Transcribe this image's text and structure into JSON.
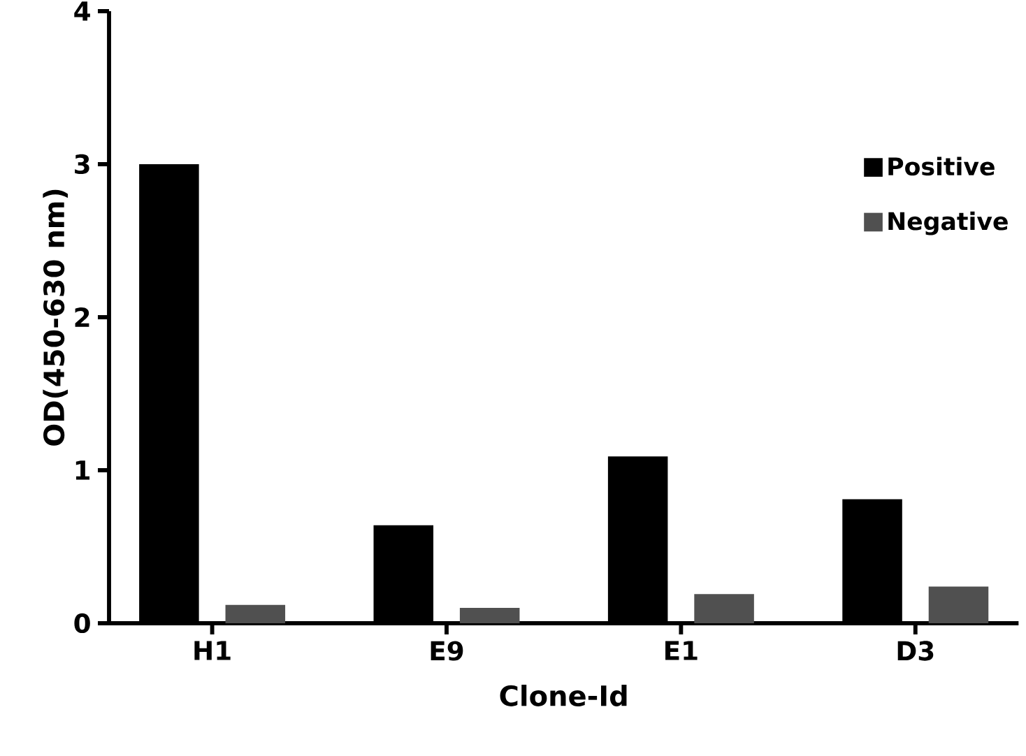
{
  "chart_data": {
    "type": "bar",
    "xlabel": "Clone-Id",
    "ylabel": "OD(450-630 nm)",
    "categories": [
      "H1",
      "E9",
      "E1",
      "D3"
    ],
    "series": [
      {
        "name": "Positive",
        "color": "#000000",
        "values": [
          3.0,
          0.64,
          1.09,
          0.81
        ]
      },
      {
        "name": "Negative",
        "color": "#505050",
        "values": [
          0.12,
          0.1,
          0.19,
          0.24
        ]
      }
    ],
    "ylim": [
      0,
      4
    ],
    "yticks": [
      0,
      1,
      2,
      3,
      4
    ],
    "legend": "right"
  }
}
